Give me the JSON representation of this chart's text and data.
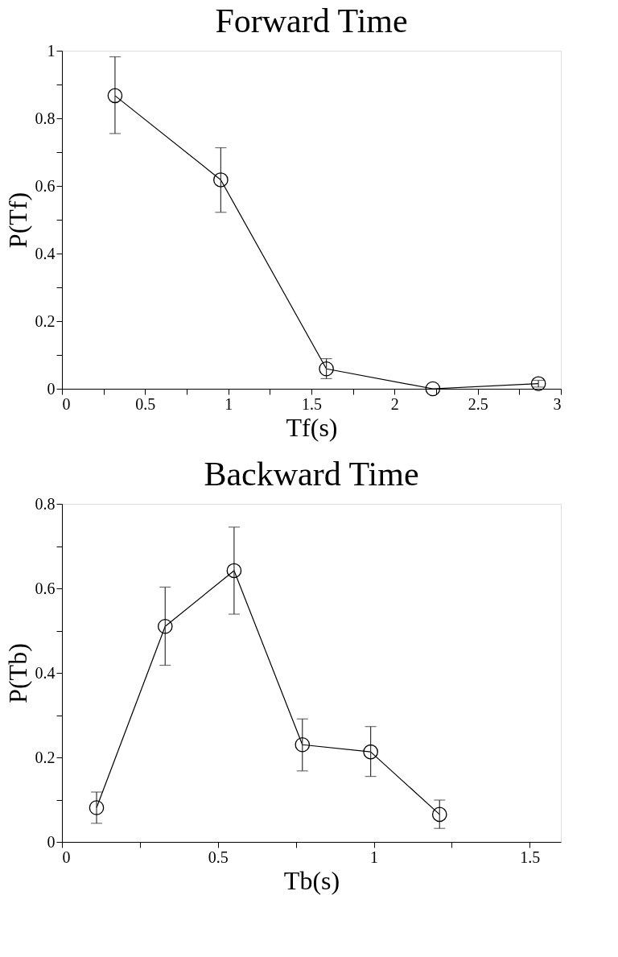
{
  "chart_data": [
    {
      "type": "line",
      "title": "Forward Time",
      "xlabel": "Tf(s)",
      "ylabel": "P(Tf)",
      "marker": "circle",
      "line_style": "solid",
      "grid": false,
      "x": [
        0.319,
        0.955,
        1.59,
        2.23,
        2.865
      ],
      "series": [
        {
          "color": "#000000",
          "values": [
            0.867,
            0.618,
            0.059,
            0.0,
            0.015
          ],
          "errors": [
            [
              0.755,
              0.982
            ],
            [
              0.522,
              0.713
            ],
            [
              0.03,
              0.089
            ],
            null,
            [
              0.005,
              0.025
            ]
          ]
        }
      ],
      "xlim": [
        0,
        3
      ],
      "ylim": [
        0,
        1
      ],
      "xticks": [
        0,
        {
          "value": 0.25,
          "label": null
        },
        0.5,
        {
          "value": 0.75,
          "label": null
        },
        1,
        {
          "value": 1.25,
          "label": null
        },
        1.5,
        {
          "value": 1.75,
          "label": null
        },
        2,
        {
          "value": 2.25,
          "label": null
        },
        2.5,
        {
          "value": 2.75,
          "label": null
        },
        3
      ],
      "yticks": [
        0,
        {
          "value": 0.1,
          "label": null
        },
        0.2,
        {
          "value": 0.3,
          "label": null
        },
        0.4,
        {
          "value": 0.5,
          "label": null
        },
        0.6,
        {
          "value": 0.7,
          "label": null
        },
        0.8,
        {
          "value": 0.9,
          "label": null
        },
        1
      ]
    },
    {
      "type": "line",
      "title": "Backward Time",
      "xlabel": "Tb(s)",
      "ylabel": "P(Tb)",
      "marker": "circle",
      "line_style": "solid",
      "grid": false,
      "x": [
        0.111,
        0.331,
        0.552,
        0.771,
        0.99,
        1.211
      ],
      "series": [
        {
          "color": "#000000",
          "values": [
            0.081,
            0.51,
            0.642,
            0.23,
            0.213,
            0.065
          ],
          "errors": [
            [
              0.044,
              0.118
            ],
            [
              0.418,
              0.603
            ],
            [
              0.539,
              0.745
            ],
            [
              0.168,
              0.291
            ],
            [
              0.155,
              0.273
            ],
            [
              0.032,
              0.099
            ]
          ]
        }
      ],
      "xlim": [
        0,
        1.6
      ],
      "ylim": [
        0,
        0.8
      ],
      "xticks": [
        0,
        {
          "value": 0.25,
          "label": null
        },
        0.5,
        {
          "value": 0.75,
          "label": null
        },
        1,
        {
          "value": 1.25,
          "label": null
        },
        1.5
      ],
      "yticks": [
        0,
        {
          "value": 0.1,
          "label": null
        },
        0.2,
        {
          "value": 0.3,
          "label": null
        },
        0.4,
        {
          "value": 0.5,
          "label": null
        },
        0.6,
        {
          "value": 0.7,
          "label": null
        },
        0.8
      ]
    }
  ]
}
